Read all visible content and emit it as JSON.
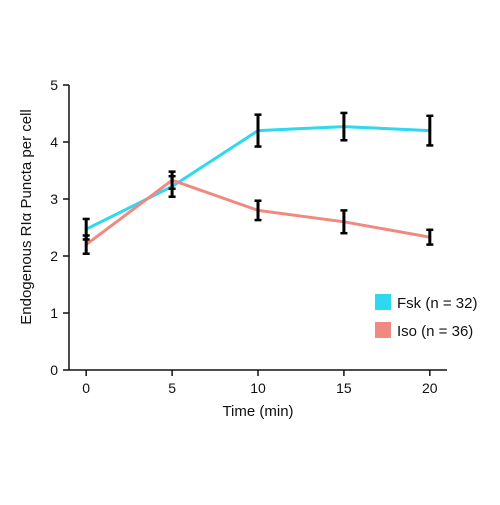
{
  "chart_data": {
    "type": "line",
    "xlabel": "Time (min)",
    "ylabel": "Endogenous RIα Puncta per cell",
    "x": [
      0,
      5,
      10,
      15,
      20
    ],
    "xlim": [
      -1,
      21
    ],
    "ylim": [
      0,
      5
    ],
    "xticks": [
      "0",
      "5",
      "10",
      "15",
      "20"
    ],
    "yticks": [
      "0",
      "1",
      "2",
      "3",
      "4",
      "5"
    ],
    "grid": false,
    "legend_position": "bottom-right",
    "series": [
      {
        "name": "Fsk (n = 32)",
        "color": "#2ed8ef",
        "values": [
          2.47,
          3.22,
          4.2,
          4.27,
          4.2
        ],
        "errors": [
          0.18,
          0.18,
          0.28,
          0.24,
          0.26
        ]
      },
      {
        "name": "Iso (n = 36)",
        "color": "#f08a80",
        "values": [
          2.2,
          3.33,
          2.8,
          2.6,
          2.33
        ],
        "errors": [
          0.16,
          0.15,
          0.17,
          0.2,
          0.13
        ]
      }
    ]
  }
}
